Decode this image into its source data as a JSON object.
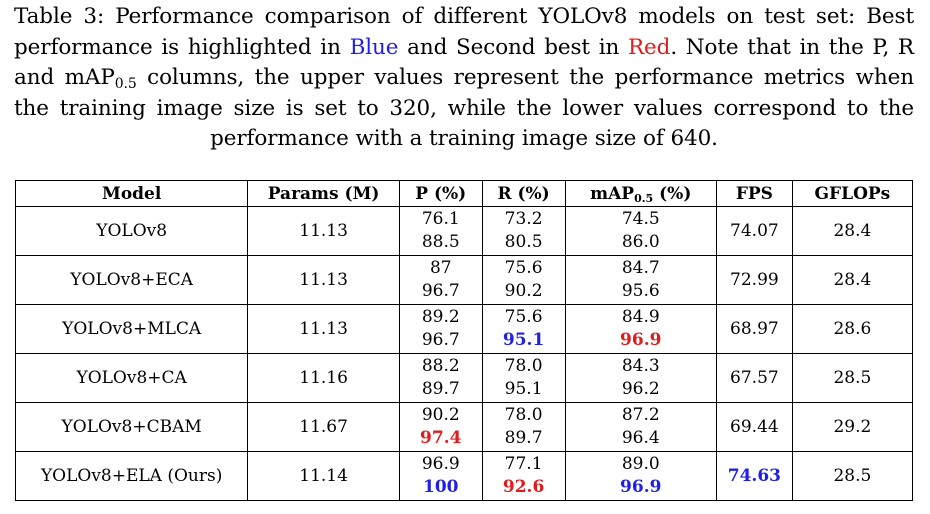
{
  "caption": {
    "text_before_blue": "Table 3: Performance comparison of different YOLOv8 models on test set: Best performance is highlighted in ",
    "blue_word": "Blue",
    "text_between": " and Second best in ",
    "red_word": "Red",
    "text_mid": ". Note that in the P, R and mAP",
    "map_subscript": "0.5",
    "text_after": " columns, the upper values represent the performance metrics when the training image size is set to 320, while the lower values correspond to the performance with a training image size of 640."
  },
  "table": {
    "headers": {
      "model": "Model",
      "params": "Params (M)",
      "p": "P (%)",
      "r": "R (%)",
      "map_prefix": "mAP",
      "map_sub": "0.5",
      "map_suffix": " (%)",
      "fps": "FPS",
      "gflops": "GFLOPs"
    },
    "rows": [
      {
        "model": "YOLOv8",
        "params": "11.13",
        "p": [
          "76.1",
          "88.5"
        ],
        "r": [
          "73.2",
          "80.5"
        ],
        "map": [
          "74.5",
          "86.0"
        ],
        "fps": "74.07",
        "gflops": "28.4"
      },
      {
        "model": "YOLOv8+ECA",
        "params": "11.13",
        "p": [
          "87",
          "96.7"
        ],
        "r": [
          "75.6",
          "90.2"
        ],
        "map": [
          "84.7",
          "95.6"
        ],
        "fps": "72.99",
        "gflops": "28.4"
      },
      {
        "model": "YOLOv8+MLCA",
        "params": "11.13",
        "p": [
          "89.2",
          "96.7"
        ],
        "r": [
          "75.6",
          "95.1"
        ],
        "map": [
          "84.9",
          "96.9"
        ],
        "fps": "68.97",
        "gflops": "28.6"
      },
      {
        "model": "YOLOv8+CA",
        "params": "11.16",
        "p": [
          "88.2",
          "89.7"
        ],
        "r": [
          "78.0",
          "95.1"
        ],
        "map": [
          "84.3",
          "96.2"
        ],
        "fps": "67.57",
        "gflops": "28.5"
      },
      {
        "model": "YOLOv8+CBAM",
        "params": "11.67",
        "p": [
          "90.2",
          "97.4"
        ],
        "r": [
          "78.0",
          "89.7"
        ],
        "map": [
          "87.2",
          "96.4"
        ],
        "fps": "69.44",
        "gflops": "29.2"
      },
      {
        "model": "YOLOv8+ELA (Ours)",
        "params": "11.14",
        "p": [
          "96.9",
          "100"
        ],
        "r": [
          "77.1",
          "92.6"
        ],
        "map": [
          "89.0",
          "96.9"
        ],
        "fps": "74.63",
        "gflops": "28.5"
      }
    ],
    "highlight_colors": {
      "best": "#1f1fe6",
      "second": "#e01b1b"
    }
  }
}
